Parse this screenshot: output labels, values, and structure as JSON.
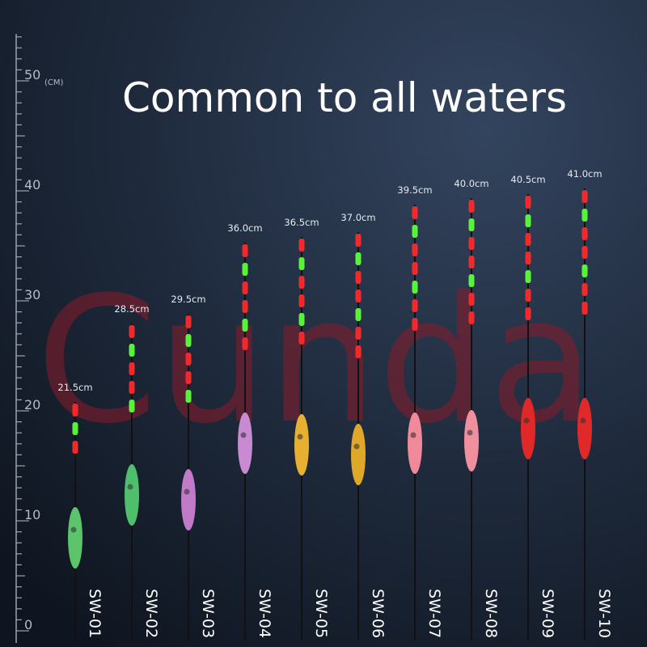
{
  "title": "Common to all waters",
  "watermark": "Cunda",
  "ruler": {
    "unit": "(CM)",
    "labels": [
      "0",
      "10",
      "20",
      "30",
      "40",
      "50"
    ]
  },
  "floats": [
    {
      "length": "21.5cm",
      "model": "SW-01"
    },
    {
      "length": "28.5cm",
      "model": "SW-02"
    },
    {
      "length": "29.5cm",
      "model": "SW-03"
    },
    {
      "length": "36.0cm",
      "model": "SW-04"
    },
    {
      "length": "36.5cm",
      "model": "SW-05"
    },
    {
      "length": "37.0cm",
      "model": "SW-06"
    },
    {
      "length": "39.5cm",
      "model": "SW-07"
    },
    {
      "length": "40.0cm",
      "model": "SW-08"
    },
    {
      "length": "40.5cm",
      "model": "SW-09"
    },
    {
      "length": "41.0cm",
      "model": "SW-10"
    }
  ]
}
